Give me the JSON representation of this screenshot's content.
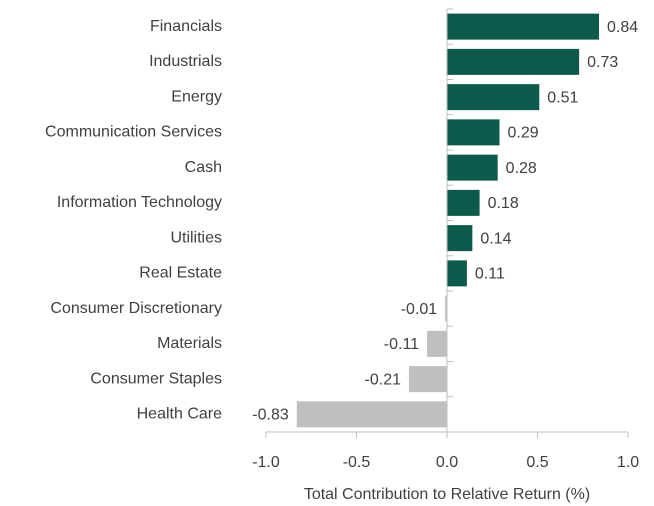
{
  "chart_data": {
    "type": "barh",
    "categories": [
      "Financials",
      "Industrials",
      "Energy",
      "Communication Services",
      "Cash",
      "Information Technology",
      "Utilities",
      "Real Estate",
      "Consumer Discretionary",
      "Materials",
      "Consumer Staples",
      "Health Care"
    ],
    "values": [
      0.84,
      0.73,
      0.51,
      0.29,
      0.28,
      0.18,
      0.14,
      0.11,
      -0.01,
      -0.11,
      -0.21,
      -0.83
    ],
    "positive_color": "#0b5a4b",
    "negative_color": "#bfbfbf",
    "xlim": [
      -1.0,
      1.0
    ],
    "xticks": [
      {
        "value": -1.0,
        "label": "-1.0"
      },
      -0.5,
      {
        "value": 0.0,
        "label": "0.0"
      },
      0.5,
      {
        "value": 1.0,
        "label": "1.0"
      }
    ],
    "xlabel": "Total Contribution to Relative Return (%)"
  }
}
